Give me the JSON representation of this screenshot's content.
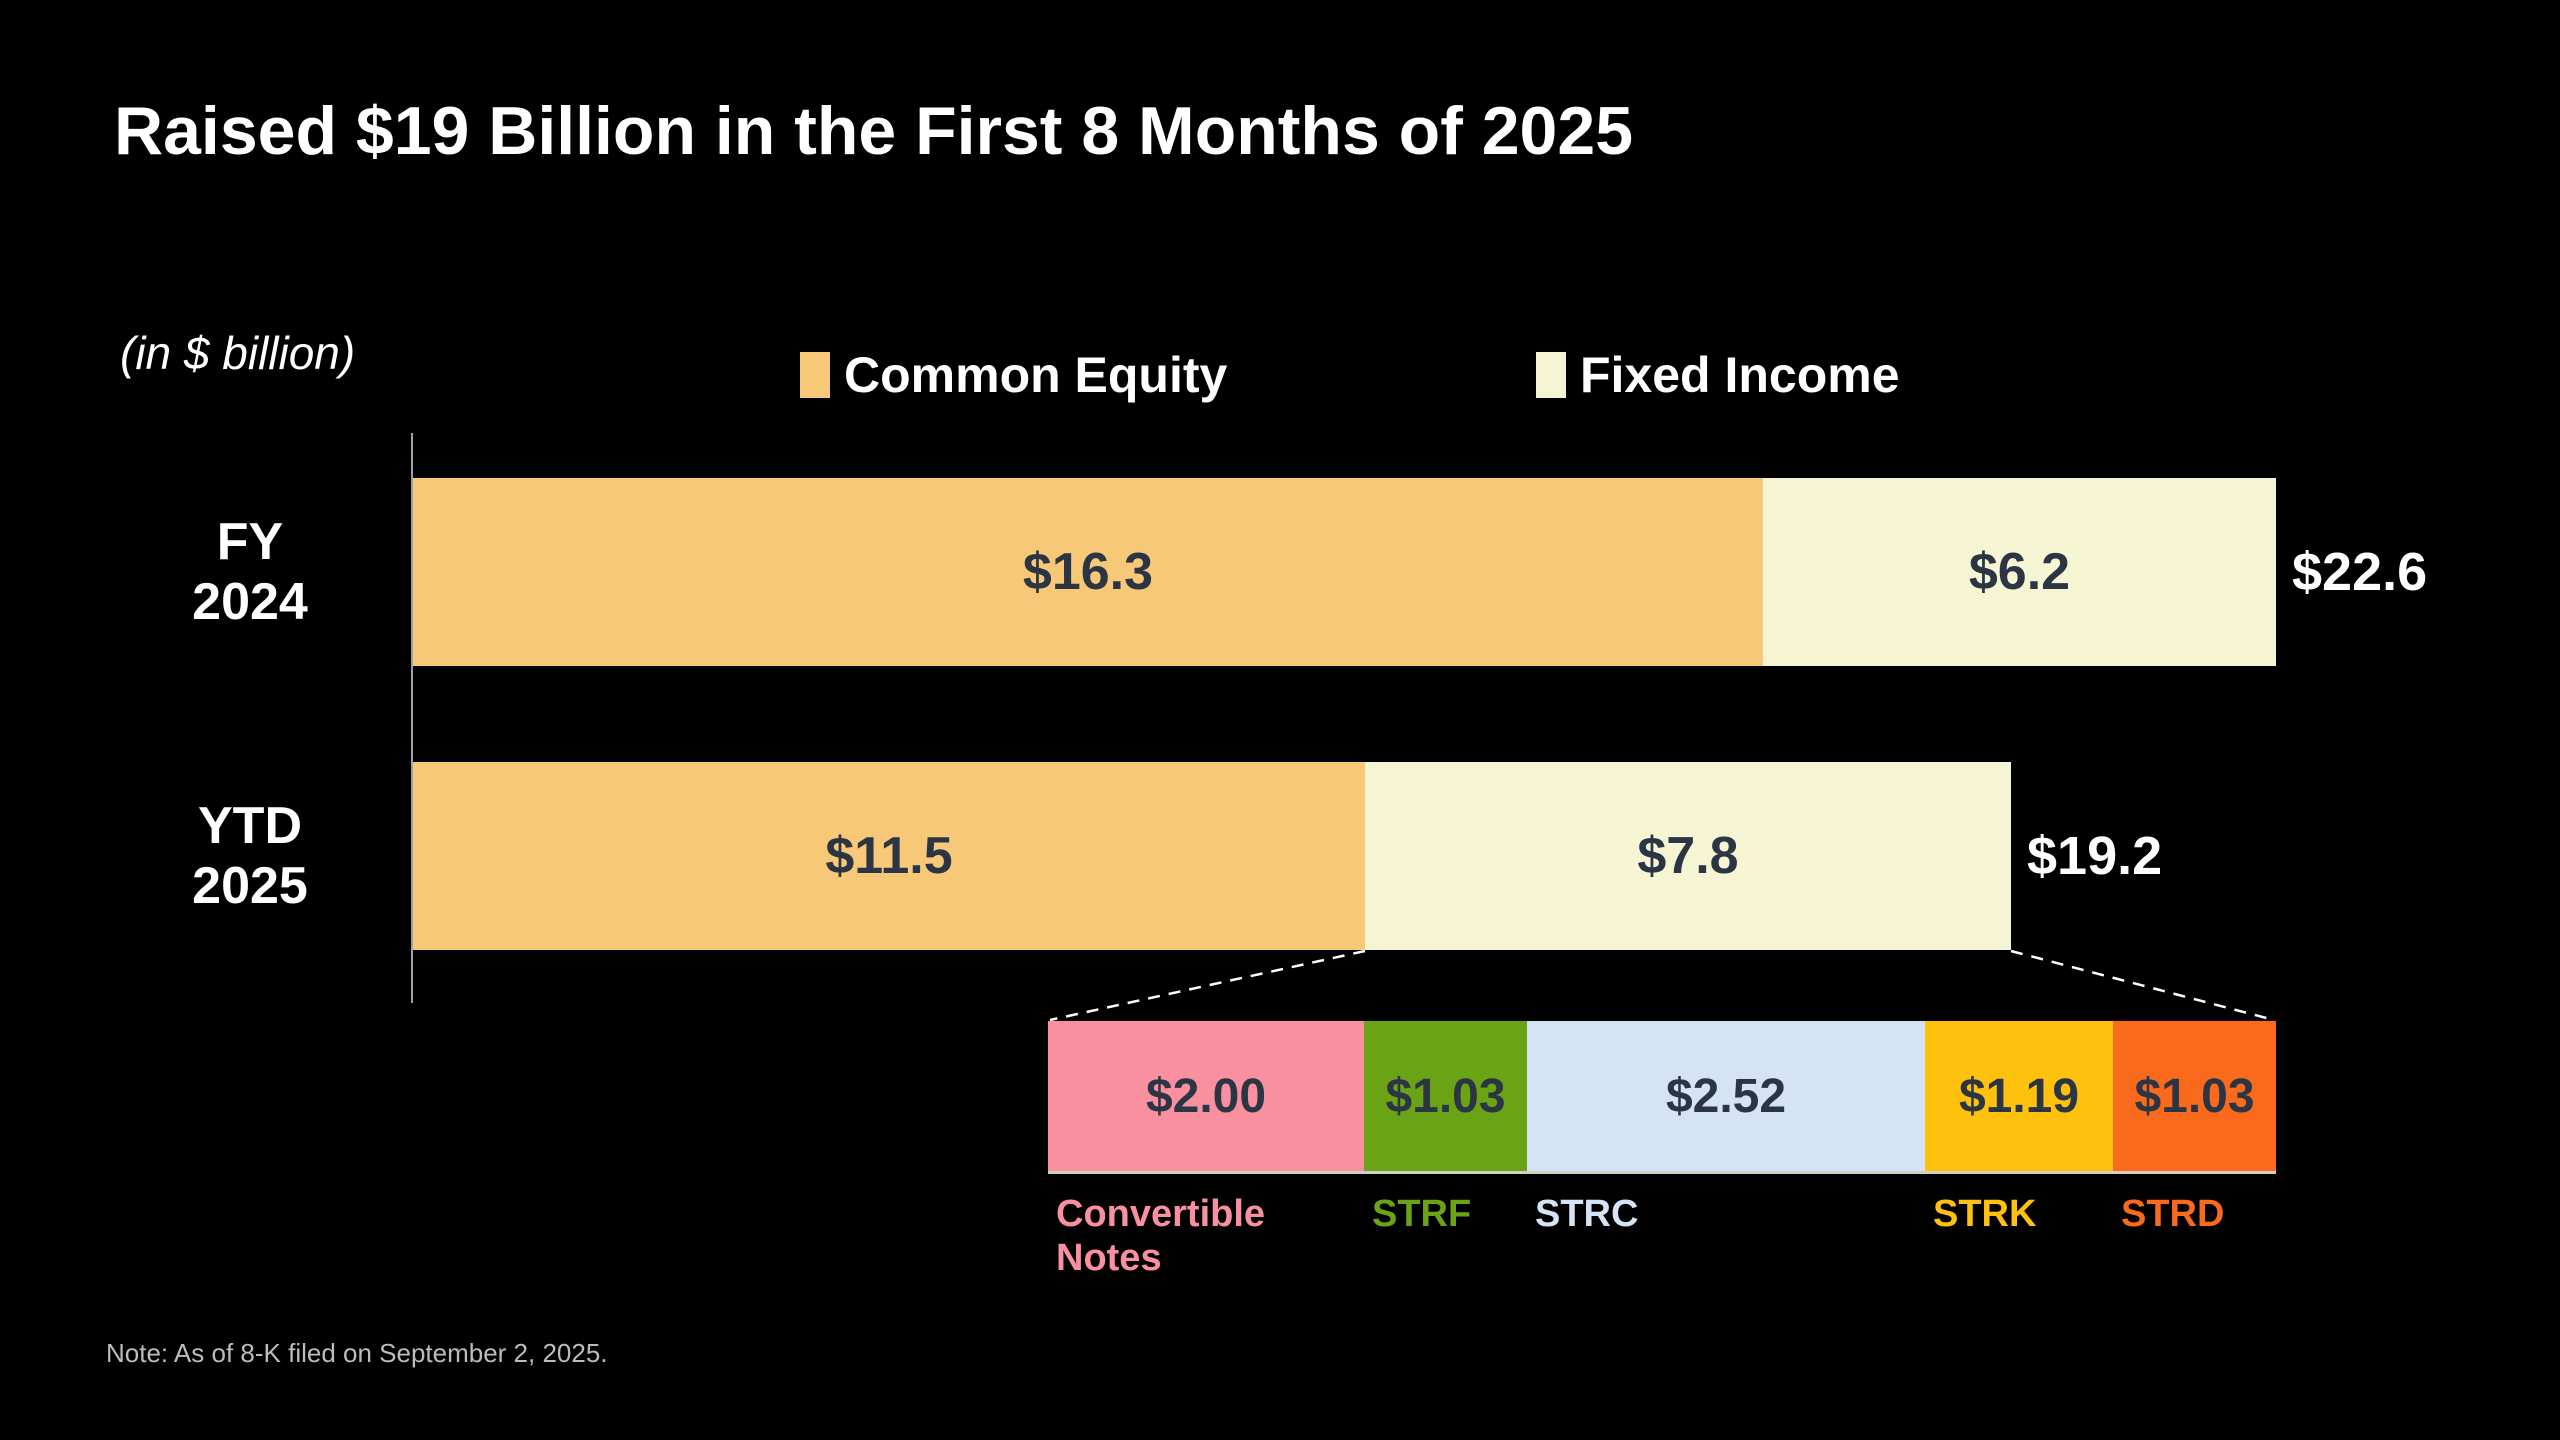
{
  "title": "Raised $19 Billion in the First 8 Months of 2025",
  "axis_note": "(in $ billion)",
  "legend": {
    "items": [
      {
        "label": "Common Equity",
        "color": "#F6C878"
      },
      {
        "label": "Fixed Income",
        "color": "#F5F4D3"
      }
    ]
  },
  "note": "Note: As of 8-K filed on September 2, 2025.",
  "colors": {
    "background": "#000000",
    "bar_value_text": "#2B3544",
    "total_text": "#ffffff",
    "axis_line": "#9aa1a8",
    "note_text": "#bcbcbc"
  },
  "chart_data": {
    "type": "bar",
    "orientation": "horizontal-stacked",
    "unit": "$ billion",
    "categories": [
      "FY 2024",
      "YTD 2025"
    ],
    "categories_display": [
      [
        "FY",
        "2024"
      ],
      [
        "YTD",
        "2025"
      ]
    ],
    "series": [
      {
        "name": "Common Equity",
        "color": "#F6C878",
        "values": [
          16.3,
          11.5
        ]
      },
      {
        "name": "Fixed Income",
        "color": "#F5F4D3",
        "values": [
          6.2,
          7.8
        ]
      }
    ],
    "value_labels": [
      [
        "$16.3",
        "$6.2"
      ],
      [
        "$11.5",
        "$7.8"
      ]
    ],
    "totals": [
      22.6,
      19.2
    ],
    "total_labels": [
      "$22.6",
      "$19.2"
    ],
    "legend_position": "top",
    "grid": false,
    "breakdown": {
      "segments": [
        {
          "label": "Convertible Notes",
          "value": 2.0,
          "value_label": "$2.00",
          "color": "#F9909F"
        },
        {
          "label": "STRF",
          "value": 1.03,
          "value_label": "$1.03",
          "color": "#6BA317"
        },
        {
          "label": "STRC",
          "value": 2.52,
          "value_label": "$2.52",
          "color": "#D5E3F6"
        },
        {
          "label": "STRK",
          "value": 1.19,
          "value_label": "$1.19",
          "color": "#FEC20E"
        },
        {
          "label": "STRD",
          "value": 1.03,
          "value_label": "$1.03",
          "color": "#FA6A1C"
        }
      ]
    }
  }
}
